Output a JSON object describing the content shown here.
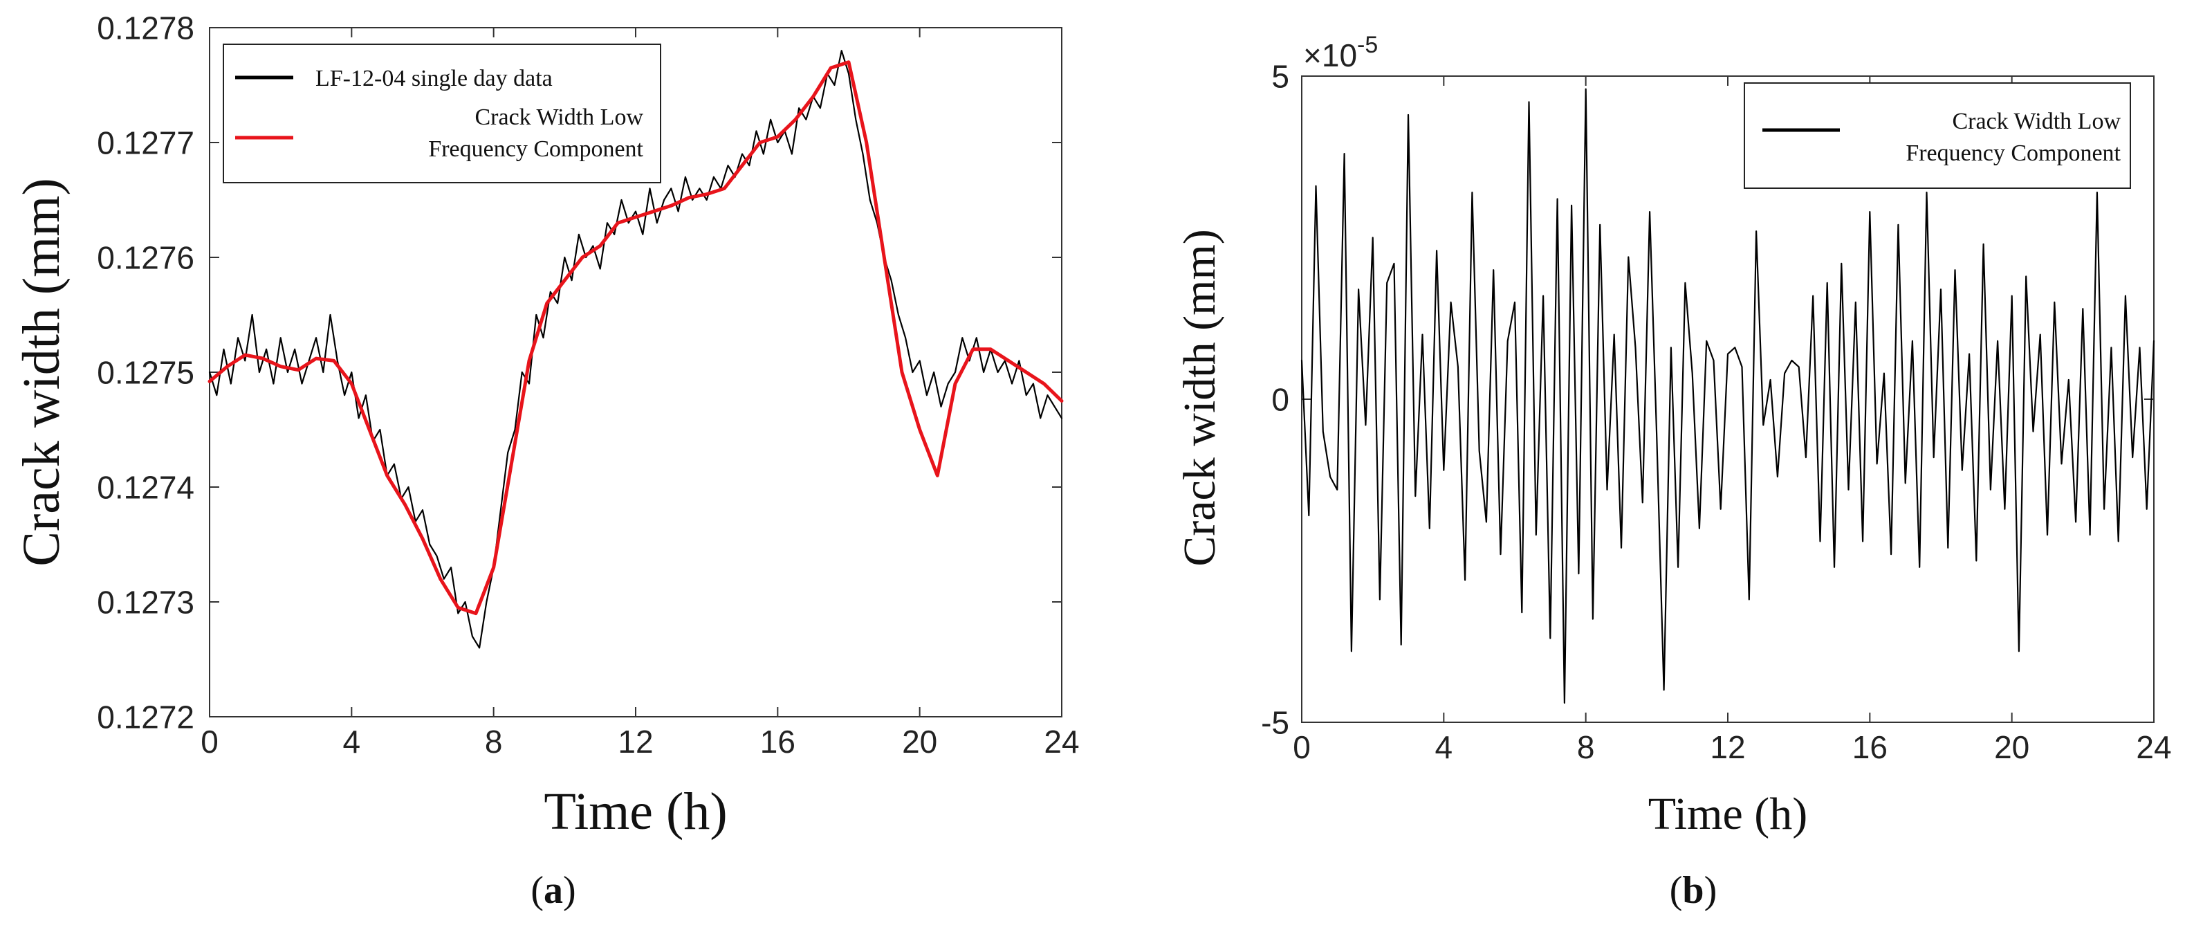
{
  "chart_data": [
    {
      "panel_label": "(a)",
      "panel_letter": "a",
      "type": "line",
      "xlabel": "Time (h)",
      "ylabel": "Crack width (mm)",
      "xlim": [
        0,
        24
      ],
      "ylim": [
        0.1272,
        0.1278
      ],
      "xticks": [
        0,
        4,
        8,
        12,
        16,
        20,
        24
      ],
      "xtick_labels": [
        "0",
        "4",
        "8",
        "12",
        "16",
        "20",
        "24"
      ],
      "yticks": [
        0.1272,
        0.1273,
        0.1274,
        0.1275,
        0.1276,
        0.1277,
        0.1278
      ],
      "ytick_labels": [
        "0.1272",
        "0.1273",
        "0.1274",
        "0.1275",
        "0.1276",
        "0.1277",
        "0.1278"
      ],
      "legend_position": "top-left",
      "series": [
        {
          "name": "LF-12-04 single day data",
          "color": "#000000",
          "x": [
            0,
            0.2,
            0.4,
            0.6,
            0.8,
            1.0,
            1.2,
            1.4,
            1.6,
            1.8,
            2.0,
            2.2,
            2.4,
            2.6,
            2.8,
            3.0,
            3.2,
            3.4,
            3.6,
            3.8,
            4.0,
            4.2,
            4.4,
            4.6,
            4.8,
            5.0,
            5.2,
            5.4,
            5.6,
            5.8,
            6.0,
            6.2,
            6.4,
            6.6,
            6.8,
            7.0,
            7.2,
            7.4,
            7.6,
            7.8,
            8.0,
            8.2,
            8.4,
            8.6,
            8.8,
            9.0,
            9.2,
            9.4,
            9.6,
            9.8,
            10.0,
            10.2,
            10.4,
            10.6,
            10.8,
            11.0,
            11.2,
            11.4,
            11.6,
            11.8,
            12.0,
            12.2,
            12.4,
            12.6,
            12.8,
            13.0,
            13.2,
            13.4,
            13.6,
            13.8,
            14.0,
            14.2,
            14.4,
            14.6,
            14.8,
            15.0,
            15.2,
            15.4,
            15.6,
            15.8,
            16.0,
            16.2,
            16.4,
            16.6,
            16.8,
            17.0,
            17.2,
            17.4,
            17.6,
            17.8,
            18.0,
            18.2,
            18.4,
            18.6,
            18.8,
            19.0,
            19.2,
            19.4,
            19.6,
            19.8,
            20.0,
            20.2,
            20.4,
            20.6,
            20.8,
            21.0,
            21.2,
            21.4,
            21.6,
            21.8,
            22.0,
            22.2,
            22.4,
            22.6,
            22.8,
            23.0,
            23.2,
            23.4,
            23.6,
            23.8,
            24.0
          ],
          "values": [
            0.1275,
            0.12748,
            0.12752,
            0.12749,
            0.12753,
            0.12751,
            0.12755,
            0.1275,
            0.12752,
            0.12749,
            0.12753,
            0.1275,
            0.12752,
            0.12749,
            0.12751,
            0.12753,
            0.1275,
            0.12755,
            0.12751,
            0.12748,
            0.1275,
            0.12746,
            0.12748,
            0.12744,
            0.12745,
            0.12741,
            0.12742,
            0.12739,
            0.1274,
            0.12737,
            0.12738,
            0.12735,
            0.12734,
            0.12732,
            0.12733,
            0.12729,
            0.1273,
            0.12727,
            0.12726,
            0.1273,
            0.12733,
            0.12738,
            0.12743,
            0.12745,
            0.1275,
            0.12749,
            0.12755,
            0.12753,
            0.12757,
            0.12756,
            0.1276,
            0.12758,
            0.12762,
            0.1276,
            0.12761,
            0.12759,
            0.12763,
            0.12762,
            0.12765,
            0.12763,
            0.12764,
            0.12762,
            0.12766,
            0.12763,
            0.12765,
            0.12766,
            0.12764,
            0.12767,
            0.12765,
            0.12766,
            0.12765,
            0.12767,
            0.12766,
            0.12768,
            0.12767,
            0.12769,
            0.12768,
            0.12771,
            0.12769,
            0.12772,
            0.1277,
            0.12771,
            0.12769,
            0.12773,
            0.12772,
            0.12774,
            0.12773,
            0.12776,
            0.12775,
            0.12778,
            0.12776,
            0.12772,
            0.12769,
            0.12765,
            0.12763,
            0.1276,
            0.12758,
            0.12755,
            0.12753,
            0.1275,
            0.12751,
            0.12748,
            0.1275,
            0.12747,
            0.12749,
            0.1275,
            0.12753,
            0.12751,
            0.12753,
            0.1275,
            0.12752,
            0.1275,
            0.12751,
            0.12749,
            0.12751,
            0.12748,
            0.12749,
            0.12746,
            0.12748,
            0.12747,
            0.12746
          ]
        },
        {
          "name": "Crack Width Low Frequency Component",
          "color": "#e8141b",
          "x": [
            0,
            0.5,
            1.0,
            1.5,
            2.0,
            2.5,
            3.0,
            3.5,
            4.0,
            4.5,
            5.0,
            5.5,
            6.0,
            6.5,
            7.0,
            7.5,
            8.0,
            8.5,
            9.0,
            9.5,
            10.0,
            10.5,
            11.0,
            11.5,
            12.0,
            12.5,
            13.0,
            13.5,
            14.0,
            14.5,
            15.0,
            15.5,
            16.0,
            16.5,
            17.0,
            17.5,
            18.0,
            18.5,
            19.0,
            19.5,
            20.0,
            20.5,
            21.0,
            21.5,
            22.0,
            22.5,
            23.0,
            23.5,
            24.0
          ],
          "values": [
            0.127492,
            0.127505,
            0.127515,
            0.127512,
            0.127505,
            0.127502,
            0.127512,
            0.12751,
            0.12749,
            0.12745,
            0.12741,
            0.127385,
            0.127355,
            0.12732,
            0.127295,
            0.12729,
            0.12733,
            0.12742,
            0.12751,
            0.12756,
            0.12758,
            0.1276,
            0.12761,
            0.12763,
            0.127635,
            0.12764,
            0.127645,
            0.127652,
            0.127655,
            0.12766,
            0.12768,
            0.1277,
            0.127705,
            0.12772,
            0.12774,
            0.127765,
            0.12777,
            0.1277,
            0.1276,
            0.1275,
            0.12745,
            0.12741,
            0.12749,
            0.12752,
            0.12752,
            0.12751,
            0.1275,
            0.12749,
            0.127475
          ]
        }
      ]
    },
    {
      "panel_label": "(b)",
      "panel_letter": "b",
      "type": "line",
      "xlabel": "Time (h)",
      "ylabel": "Crack width (mm)",
      "xlim": [
        0,
        24
      ],
      "ylim": [
        -5,
        5
      ],
      "y_multiplier_base": "×10",
      "y_multiplier_exponent": "-5",
      "xticks": [
        0,
        4,
        8,
        12,
        16,
        20,
        24
      ],
      "xtick_labels": [
        "0",
        "4",
        "8",
        "12",
        "16",
        "20",
        "24"
      ],
      "yticks": [
        -5,
        0,
        5
      ],
      "ytick_labels": [
        "-5",
        "0",
        "5"
      ],
      "legend_position": "top-right",
      "series": [
        {
          "name": "Crack Width Low Frequency Component",
          "color": "#000000",
          "x": [
            0,
            0.2,
            0.4,
            0.6,
            0.8,
            1.0,
            1.2,
            1.4,
            1.6,
            1.8,
            2.0,
            2.2,
            2.4,
            2.6,
            2.8,
            3.0,
            3.2,
            3.4,
            3.6,
            3.8,
            4.0,
            4.2,
            4.4,
            4.6,
            4.8,
            5.0,
            5.2,
            5.4,
            5.6,
            5.8,
            6.0,
            6.2,
            6.4,
            6.6,
            6.8,
            7.0,
            7.2,
            7.4,
            7.6,
            7.8,
            8.0,
            8.2,
            8.4,
            8.6,
            8.8,
            9.0,
            9.2,
            9.4,
            9.6,
            9.8,
            10.0,
            10.2,
            10.4,
            10.6,
            10.8,
            11.0,
            11.2,
            11.4,
            11.6,
            11.8,
            12.0,
            12.2,
            12.4,
            12.6,
            12.8,
            13.0,
            13.2,
            13.4,
            13.6,
            13.8,
            14.0,
            14.2,
            14.4,
            14.6,
            14.8,
            15.0,
            15.2,
            15.4,
            15.6,
            15.8,
            16.0,
            16.2,
            16.4,
            16.6,
            16.8,
            17.0,
            17.2,
            17.4,
            17.6,
            17.8,
            18.0,
            18.2,
            18.4,
            18.6,
            18.8,
            19.0,
            19.2,
            19.4,
            19.6,
            19.8,
            20.0,
            20.2,
            20.4,
            20.6,
            20.8,
            21.0,
            21.2,
            21.4,
            21.6,
            21.8,
            22.0,
            22.2,
            22.4,
            22.6,
            22.8,
            23.0,
            23.2,
            23.4,
            23.6,
            23.8,
            24.0
          ],
          "values": [
            0.6,
            -1.8,
            3.3,
            -0.5,
            -1.2,
            -1.4,
            3.8,
            -3.9,
            1.7,
            -0.4,
            2.5,
            -3.1,
            1.8,
            2.1,
            -3.8,
            4.4,
            -1.5,
            1.0,
            -2.0,
            2.3,
            -1.1,
            1.5,
            0.5,
            -2.8,
            3.2,
            -0.8,
            -1.9,
            2.0,
            -2.4,
            0.9,
            1.5,
            -3.3,
            4.6,
            -2.1,
            1.6,
            -3.7,
            3.1,
            -4.7,
            3.0,
            -2.7,
            4.8,
            -3.4,
            2.7,
            -1.4,
            1.0,
            -2.3,
            2.2,
            0.8,
            -1.6,
            2.9,
            -0.6,
            -4.5,
            0.8,
            -2.6,
            1.8,
            0.4,
            -2.0,
            0.9,
            0.6,
            -1.7,
            0.7,
            0.8,
            0.5,
            -3.1,
            2.6,
            -0.4,
            0.3,
            -1.2,
            0.4,
            0.6,
            0.5,
            -0.9,
            1.6,
            -2.2,
            1.8,
            -2.6,
            2.1,
            -1.4,
            1.5,
            -2.2,
            2.9,
            -1.0,
            0.4,
            -2.4,
            2.7,
            -1.3,
            0.9,
            -2.6,
            3.2,
            -0.9,
            1.7,
            -2.3,
            2.0,
            -1.1,
            0.7,
            -2.5,
            2.4,
            -1.4,
            0.9,
            -1.7,
            1.6,
            -3.9,
            1.9,
            -0.5,
            1.0,
            -2.1,
            1.5,
            -1.0,
            0.3,
            -1.9,
            1.4,
            -2.1,
            3.2,
            -1.7,
            0.8,
            -2.2,
            1.6,
            -0.9,
            0.8,
            -1.7,
            0.9
          ]
        }
      ]
    }
  ]
}
